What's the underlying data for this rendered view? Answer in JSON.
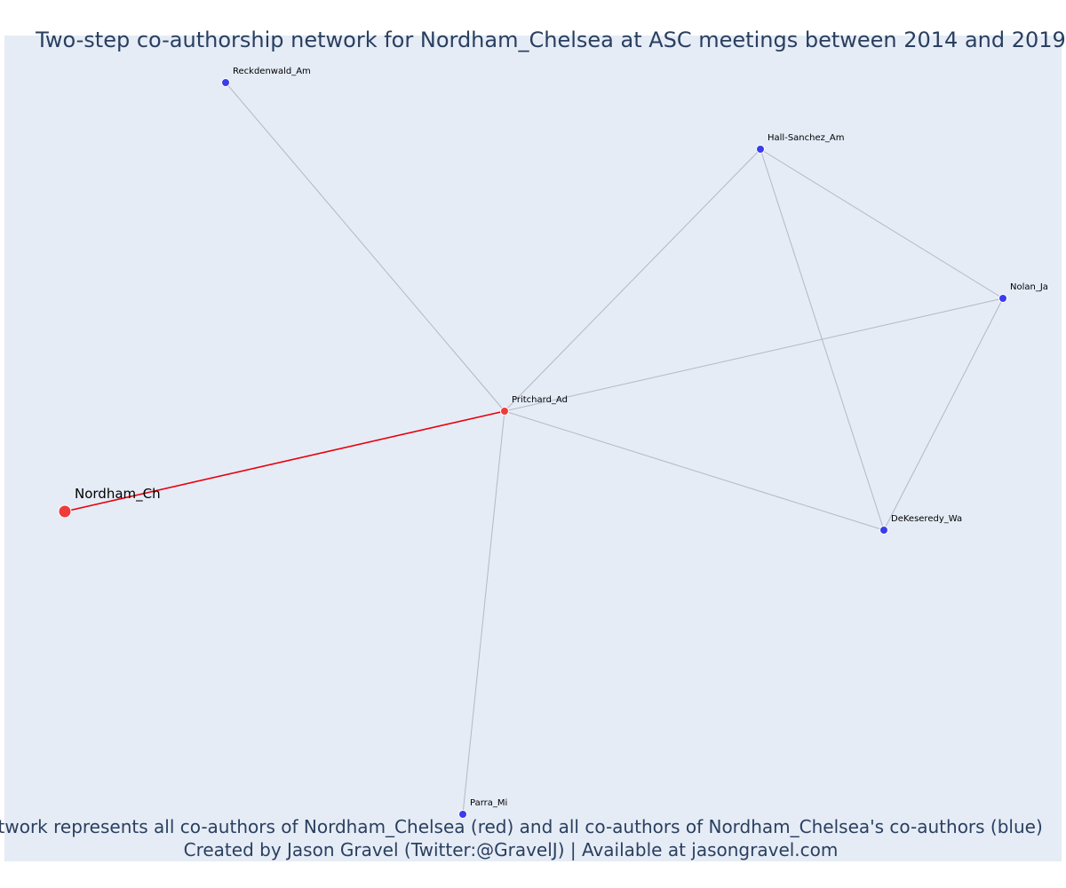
{
  "title": "Two-step co-authorship network for Nordham_Chelsea at ASC meetings between 2014 and 2019",
  "caption_line1": "Network represents all co-authors of Nordham_Chelsea (red) and all co-authors of Nordham_Chelsea's co-authors (blue)",
  "caption_line2": "Created by Jason Gravel (Twitter:@GravelJ) | Available at jasongravel.com",
  "colors": {
    "background": "#e5ecf6",
    "edge_default": "#b4b8c6",
    "edge_focus": "#e8000b",
    "node_red": "#ef3b3b",
    "node_blue": "#3b3bef",
    "title_text": "#2a3f5f"
  },
  "nodes": [
    {
      "id": "Nordham_Ch",
      "label": "Nordham_Ch",
      "group": "red",
      "focus": true
    },
    {
      "id": "Pritchard_Ad",
      "label": "Pritchard_Ad",
      "group": "red",
      "focus": false
    },
    {
      "id": "Reckdenwald_Am",
      "label": "Reckdenwald_Am",
      "group": "blue",
      "focus": false
    },
    {
      "id": "Hall-Sanchez_Am",
      "label": "Hall-Sanchez_Am",
      "group": "blue",
      "focus": false
    },
    {
      "id": "Nolan_Ja",
      "label": "Nolan_Ja",
      "group": "blue",
      "focus": false
    },
    {
      "id": "DeKeseredy_Wa",
      "label": "DeKeseredy_Wa",
      "group": "blue",
      "focus": false
    },
    {
      "id": "Parra_Mi",
      "label": "Parra_Mi",
      "group": "blue",
      "focus": false
    }
  ],
  "edges": [
    {
      "source": "Nordham_Ch",
      "target": "Pritchard_Ad",
      "focus": true
    },
    {
      "source": "Pritchard_Ad",
      "target": "Reckdenwald_Am",
      "focus": false
    },
    {
      "source": "Pritchard_Ad",
      "target": "Hall-Sanchez_Am",
      "focus": false
    },
    {
      "source": "Pritchard_Ad",
      "target": "Nolan_Ja",
      "focus": false
    },
    {
      "source": "Pritchard_Ad",
      "target": "DeKeseredy_Wa",
      "focus": false
    },
    {
      "source": "Pritchard_Ad",
      "target": "Parra_Mi",
      "focus": false
    },
    {
      "source": "Hall-Sanchez_Am",
      "target": "Nolan_Ja",
      "focus": false
    },
    {
      "source": "Hall-Sanchez_Am",
      "target": "DeKeseredy_Wa",
      "focus": false
    },
    {
      "source": "Nolan_Ja",
      "target": "DeKeseredy_Wa",
      "focus": false
    }
  ]
}
